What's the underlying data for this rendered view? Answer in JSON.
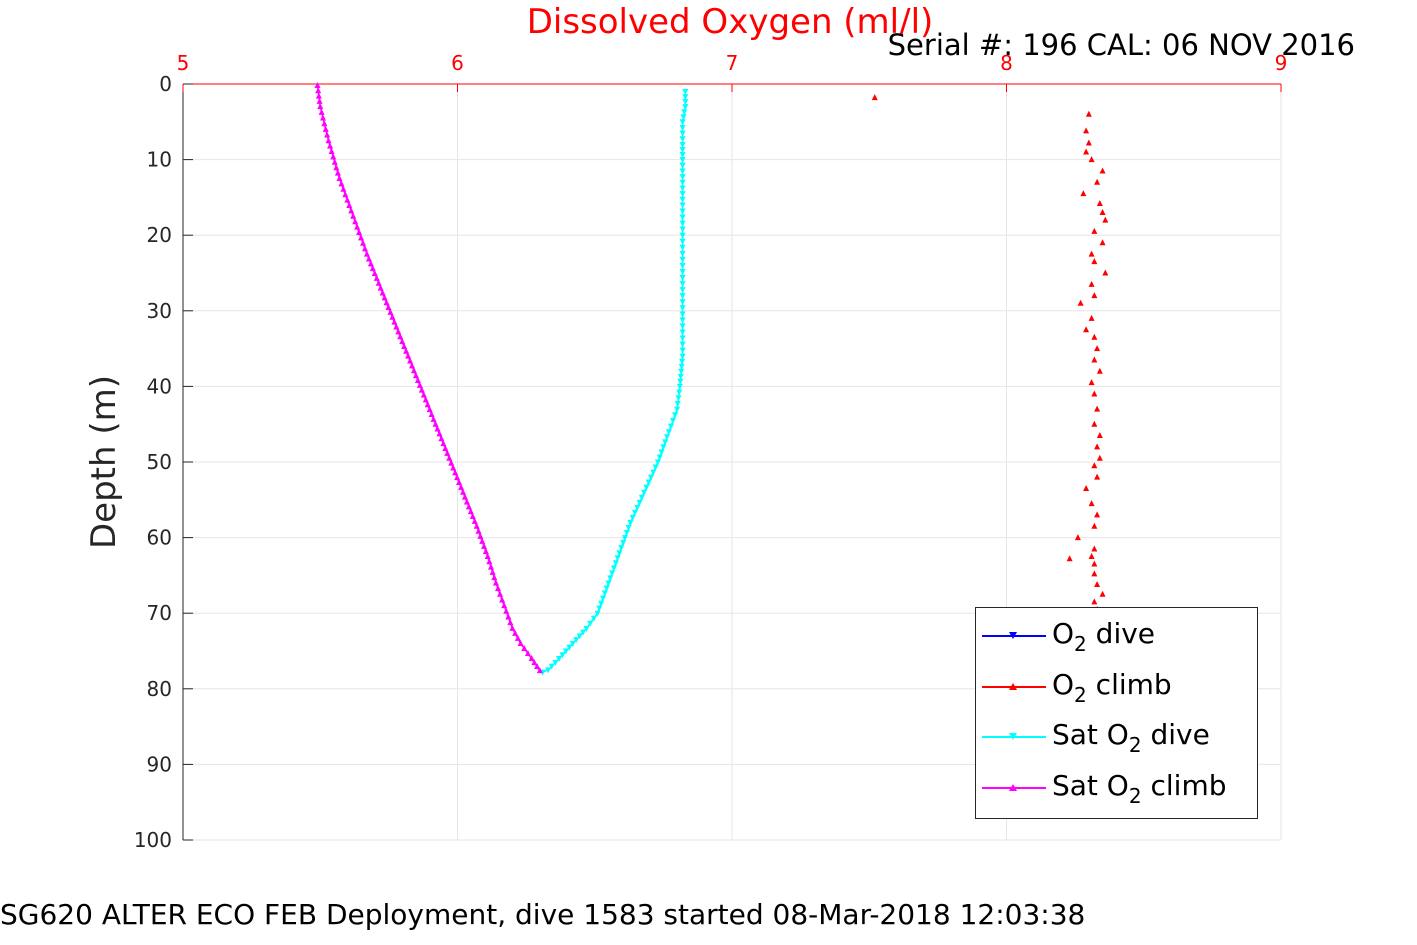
{
  "title": "Dissolved Oxygen (ml/l)",
  "serial_text": "Serial #: 196  CAL: 06 NOV 2016",
  "ylabel": "Depth (m)",
  "footer": "SG620 ALTER ECO FEB Deployment, dive 1583 started 08-Mar-2018 12:03:38",
  "colors": {
    "title": "#ff0000",
    "o2_dive": "#0000ff",
    "o2_climb": "#ff0000",
    "sat_dive": "#00ffff",
    "sat_climb": "#ff00ff",
    "grid": "#e6e6e6",
    "top_grid": "#ffcccc"
  },
  "legend": [
    {
      "pre": "O",
      "sub": "2",
      "post": " dive",
      "color": "#0000ff",
      "marker": "down"
    },
    {
      "pre": "O",
      "sub": "2",
      "post": " climb",
      "color": "#ff0000",
      "marker": "up"
    },
    {
      "pre": "Sat O",
      "sub": "2",
      "post": " dive",
      "color": "#00ffff",
      "marker": "down"
    },
    {
      "pre": "Sat O",
      "sub": "2",
      "post": " climb",
      "color": "#ff00ff",
      "marker": "up"
    }
  ],
  "chart_data": {
    "type": "line",
    "title": "Dissolved Oxygen (ml/l)",
    "xlabel": "",
    "ylabel": "Depth (m)",
    "xlim": [
      5,
      9
    ],
    "ylim": [
      0,
      100
    ],
    "y_reversed": true,
    "x_axis_location": "top",
    "xticks": [
      "5",
      "6",
      "7",
      "8",
      "9"
    ],
    "yticks": [
      "0",
      "10",
      "20",
      "30",
      "40",
      "50",
      "60",
      "70",
      "80",
      "90",
      "100"
    ],
    "grid": true,
    "legend_position": "bottom-right",
    "series": [
      {
        "name": "O2 dive",
        "style": "line-markers",
        "marker": "down",
        "x": [],
        "y": []
      },
      {
        "name": "O2 climb",
        "style": "markers",
        "marker": "up",
        "x": [
          7.52,
          8.3,
          8.29,
          8.3,
          8.29,
          8.31,
          8.35,
          8.33,
          8.28,
          8.34,
          8.35,
          8.36,
          8.32,
          8.35,
          8.31,
          8.32,
          8.36,
          8.31,
          8.32,
          8.27,
          8.31,
          8.29,
          8.32,
          8.33,
          8.32,
          8.34,
          8.31,
          8.32,
          8.33,
          8.32,
          8.34,
          8.33,
          8.34,
          8.32,
          8.33,
          8.29,
          8.31,
          8.33,
          8.32,
          8.26,
          8.32,
          8.31,
          8.32,
          8.23,
          8.32,
          8.33,
          8.35,
          8.32,
          8.33
        ],
        "y": [
          1.8,
          4.0,
          6.2,
          7.8,
          9.0,
          10.0,
          11.5,
          13.0,
          14.5,
          15.8,
          17.0,
          18.0,
          19.5,
          21.0,
          22.5,
          23.5,
          25.0,
          26.5,
          28.0,
          29.0,
          31.0,
          32.5,
          33.5,
          35.0,
          36.5,
          38.0,
          39.5,
          41.0,
          43.0,
          45.0,
          46.5,
          48.0,
          49.5,
          50.5,
          52.0,
          53.5,
          55.5,
          57.0,
          58.5,
          60.0,
          61.5,
          62.5,
          63.5,
          62.8,
          64.8,
          66.2,
          67.5,
          68.5,
          69.5
        ]
      },
      {
        "name": "Sat O2 dive",
        "style": "line-markers",
        "marker": "down",
        "x": [
          6.83,
          6.83,
          6.82,
          6.82,
          6.82,
          6.82,
          6.82,
          6.82,
          6.82,
          6.82,
          6.82,
          6.82,
          6.81,
          6.8,
          6.77,
          6.73,
          6.68,
          6.63,
          6.59,
          6.55,
          6.51,
          6.47,
          6.42,
          6.37,
          6.33,
          6.31
        ],
        "y": [
          1,
          3,
          5,
          8,
          10,
          13,
          16,
          20,
          24,
          28,
          32,
          36,
          40,
          43,
          46,
          50,
          54,
          58,
          62,
          66,
          70,
          72,
          74,
          76,
          77.5,
          77.8
        ]
      },
      {
        "name": "Sat O2 climb",
        "style": "line-markers",
        "marker": "up",
        "x": [
          6.3,
          6.27,
          6.23,
          6.2,
          6.17,
          6.14,
          6.11,
          6.07,
          6.02,
          5.97,
          5.92,
          5.87,
          5.82,
          5.77,
          5.72,
          5.67,
          5.62,
          5.57,
          5.53,
          5.5,
          5.49
        ],
        "y": [
          77.6,
          76.0,
          74.0,
          72.0,
          69.0,
          66.0,
          62.5,
          58.5,
          54.0,
          49.5,
          45.0,
          40.5,
          36.0,
          31.5,
          27.0,
          22.5,
          17.5,
          12.5,
          7.5,
          3.0,
          0.2
        ]
      }
    ]
  }
}
